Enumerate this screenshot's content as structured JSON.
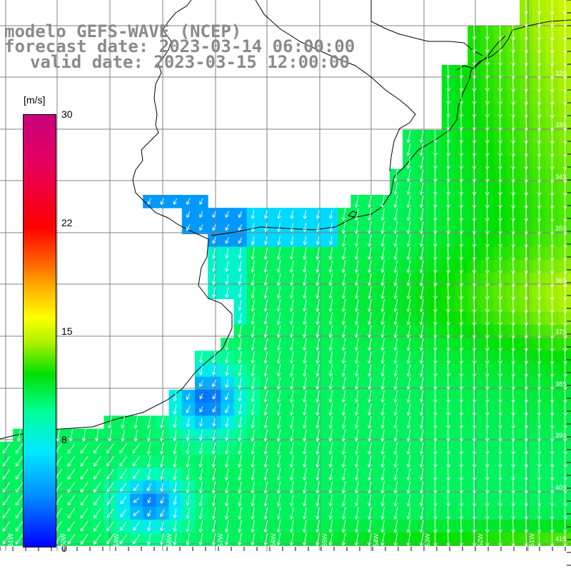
{
  "title": {
    "line1": "modelo GEFS-WAVE (NCEP)",
    "line2": "forecast date: 2023-03-14 06:00:00",
    "line3": "valid date: 2023-03-15 12:00:00"
  },
  "colorbar": {
    "unit": "[m/s]",
    "min": 0,
    "max": 30,
    "ticks": [
      "30",
      "22",
      "15",
      "8",
      "0"
    ],
    "tick_values": [
      30,
      22,
      15,
      8,
      0
    ],
    "colors": [
      "#0000ff",
      "#0090ff",
      "#00e8ff",
      "#00ff9c",
      "#00e000",
      "#a8f000",
      "#ffff00",
      "#ffb000",
      "#ff6000",
      "#ff0000",
      "#c8007e"
    ]
  },
  "lat_labels": [
    "32S",
    "33S",
    "34S",
    "35S",
    "36S",
    "37S",
    "38S",
    "39S",
    "40S",
    "41S"
  ],
  "lon_labels": [
    "61W",
    "60W",
    "59W",
    "58W",
    "57W",
    "56W",
    "55W",
    "54W",
    "53W",
    "52W",
    "51W"
  ],
  "map_colors": {
    "land": "#ffffff",
    "coastline": "#000000",
    "grid": "#808080",
    "arrows": "#ffffff"
  }
}
